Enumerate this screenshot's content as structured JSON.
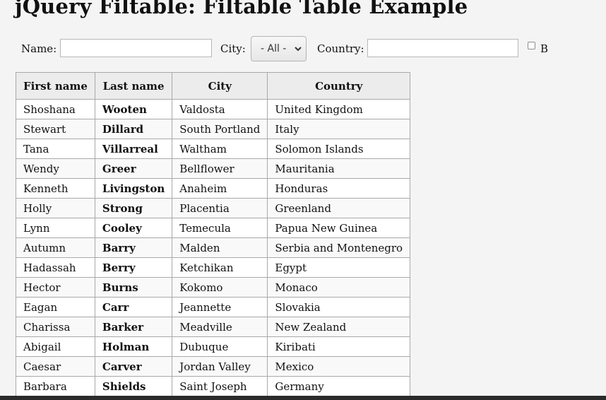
{
  "page": {
    "title": "jQuery Filtable: Filtable Table Example"
  },
  "filters": {
    "name_label": "Name:",
    "name_value": "",
    "city_label": "City:",
    "city_selected": "- All -",
    "country_label": "Country:",
    "country_value": "",
    "checkbox_label": "B",
    "checkbox_checked": false
  },
  "table": {
    "headers": [
      "First name",
      "Last name",
      "City",
      "Country"
    ],
    "rows": [
      [
        "Shoshana",
        "Wooten",
        "Valdosta",
        "United Kingdom"
      ],
      [
        "Stewart",
        "Dillard",
        "South Portland",
        "Italy"
      ],
      [
        "Tana",
        "Villarreal",
        "Waltham",
        "Solomon Islands"
      ],
      [
        "Wendy",
        "Greer",
        "Bellflower",
        "Mauritania"
      ],
      [
        "Kenneth",
        "Livingston",
        "Anaheim",
        "Honduras"
      ],
      [
        "Holly",
        "Strong",
        "Placentia",
        "Greenland"
      ],
      [
        "Lynn",
        "Cooley",
        "Temecula",
        "Papua New Guinea"
      ],
      [
        "Autumn",
        "Barry",
        "Malden",
        "Serbia and Montenegro"
      ],
      [
        "Hadassah",
        "Berry",
        "Ketchikan",
        "Egypt"
      ],
      [
        "Hector",
        "Burns",
        "Kokomo",
        "Monaco"
      ],
      [
        "Eagan",
        "Carr",
        "Jeannette",
        "Slovakia"
      ],
      [
        "Charissa",
        "Barker",
        "Meadville",
        "New Zealand"
      ],
      [
        "Abigail",
        "Holman",
        "Dubuque",
        "Kiribati"
      ],
      [
        "Caesar",
        "Carver",
        "Jordan Valley",
        "Mexico"
      ],
      [
        "Barbara",
        "Shields",
        "Saint Joseph",
        "Germany"
      ]
    ]
  },
  "icons": {
    "select_arrow": "chevron-down-icon",
    "checkbox": "checkbox-icon"
  }
}
